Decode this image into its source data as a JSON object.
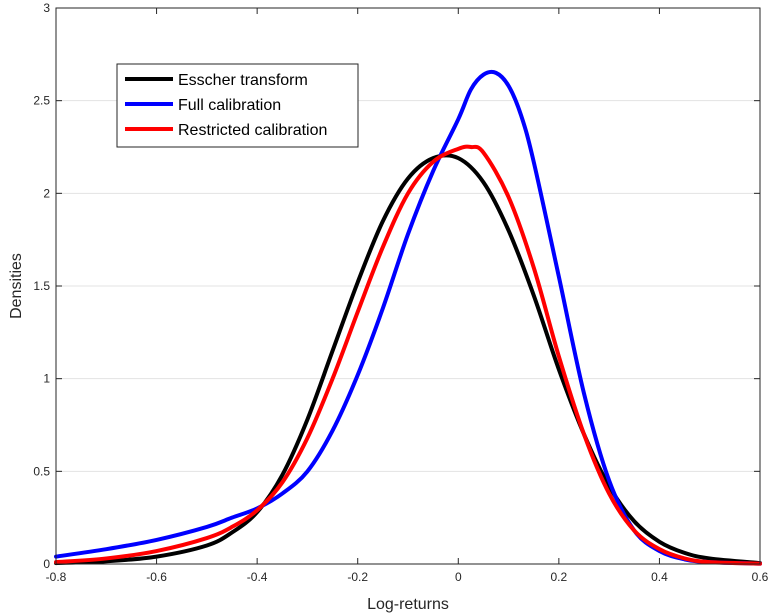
{
  "chart_data": {
    "type": "line",
    "title": "",
    "xlabel": "Log-returns",
    "ylabel": "Densities",
    "xlim": [
      -0.8,
      0.6
    ],
    "ylim": [
      0,
      3
    ],
    "x_ticks": [
      -0.8,
      -0.6,
      -0.4,
      -0.2,
      0,
      0.2,
      0.4,
      0.6
    ],
    "x_tick_labels": [
      "-0.8",
      "-0.6",
      "-0.4",
      "-0.2",
      "0",
      "0.2",
      "0.4",
      "0.6"
    ],
    "y_ticks": [
      0,
      0.5,
      1,
      1.5,
      2,
      2.5,
      3
    ],
    "y_tick_labels": [
      "0",
      "0.5",
      "1",
      "1.5",
      "2",
      "2.5",
      "3"
    ],
    "grid": true,
    "legend_position": "top-left",
    "series": [
      {
        "name": "Esscher transform",
        "color": "#000000",
        "x": [
          -0.8,
          -0.7,
          -0.6,
          -0.5,
          -0.45,
          -0.4,
          -0.35,
          -0.3,
          -0.25,
          -0.2,
          -0.15,
          -0.1,
          -0.05,
          0,
          0.05,
          0.1,
          0.15,
          0.2,
          0.25,
          0.3,
          0.35,
          0.4,
          0.45,
          0.5,
          0.6
        ],
        "y": [
          0.005,
          0.015,
          0.04,
          0.1,
          0.17,
          0.28,
          0.48,
          0.78,
          1.15,
          1.52,
          1.85,
          2.08,
          2.19,
          2.19,
          2.06,
          1.8,
          1.45,
          1.05,
          0.7,
          0.42,
          0.23,
          0.12,
          0.06,
          0.03,
          0.005
        ]
      },
      {
        "name": "Full calibration",
        "color": "#0000ff",
        "x": [
          -0.8,
          -0.7,
          -0.6,
          -0.5,
          -0.45,
          -0.4,
          -0.35,
          -0.3,
          -0.25,
          -0.2,
          -0.15,
          -0.1,
          -0.05,
          0,
          0.025,
          0.05,
          0.075,
          0.1,
          0.125,
          0.15,
          0.2,
          0.25,
          0.3,
          0.35,
          0.4,
          0.45,
          0.5,
          0.6
        ],
        "y": [
          0.04,
          0.08,
          0.13,
          0.2,
          0.25,
          0.3,
          0.38,
          0.5,
          0.72,
          1.02,
          1.38,
          1.78,
          2.12,
          2.4,
          2.56,
          2.64,
          2.65,
          2.58,
          2.42,
          2.17,
          1.55,
          0.92,
          0.45,
          0.18,
          0.07,
          0.025,
          0.01,
          0.002
        ]
      },
      {
        "name": "Restricted calibration",
        "color": "#ff0000",
        "x": [
          -0.8,
          -0.7,
          -0.6,
          -0.5,
          -0.45,
          -0.4,
          -0.35,
          -0.3,
          -0.25,
          -0.2,
          -0.15,
          -0.1,
          -0.05,
          0,
          0.025,
          0.05,
          0.1,
          0.15,
          0.2,
          0.25,
          0.3,
          0.35,
          0.4,
          0.45,
          0.5,
          0.6
        ],
        "y": [
          0.01,
          0.03,
          0.07,
          0.14,
          0.2,
          0.29,
          0.44,
          0.68,
          1.0,
          1.36,
          1.71,
          2.0,
          2.17,
          2.24,
          2.25,
          2.22,
          1.98,
          1.6,
          1.12,
          0.7,
          0.38,
          0.18,
          0.08,
          0.03,
          0.01,
          0.002
        ]
      }
    ]
  }
}
